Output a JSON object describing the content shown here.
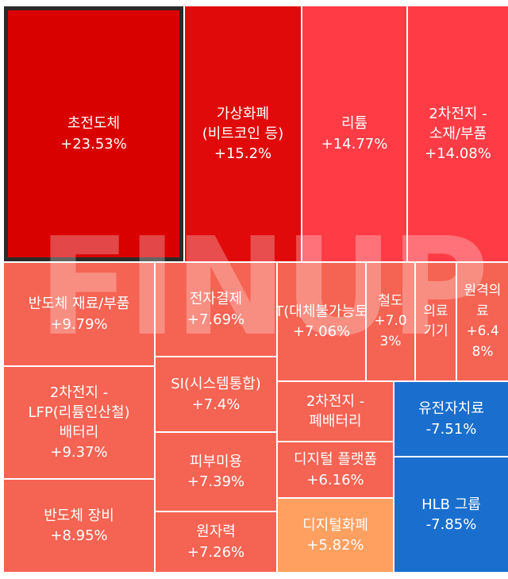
{
  "watermark": "FINUP",
  "chart_data": {
    "type": "treemap",
    "tiles": [
      {
        "name": "초전도체",
        "change": "+23.53%",
        "value": 23.53,
        "color": "#d90000",
        "selected": true
      },
      {
        "name": "가상화폐(비트코인 등)",
        "change": "+15.2%",
        "value": 15.2,
        "color": "#e00a0a"
      },
      {
        "name": "리튬",
        "change": "+14.77%",
        "value": 14.77,
        "color": "#ff3c46"
      },
      {
        "name": "2차전지 - 소재/부품",
        "change": "+14.08%",
        "value": 14.08,
        "color": "#ff3c46"
      },
      {
        "name": "반도체 재료/부품",
        "change": "+9.79%",
        "value": 9.79,
        "color": "#f56353"
      },
      {
        "name": "2차전지 - LFP(리튬인산철) 배터리",
        "change": "+9.37%",
        "value": 9.37,
        "color": "#f56353"
      },
      {
        "name": "반도체 장비",
        "change": "+8.95%",
        "value": 8.95,
        "color": "#f56353"
      },
      {
        "name": "전자결제",
        "change": "+7.69%",
        "value": 7.69,
        "color": "#f56353"
      },
      {
        "name": "SI(시스템통합)",
        "change": "+7.4%",
        "value": 7.4,
        "color": "#f56353"
      },
      {
        "name": "피부미용",
        "change": "+7.39%",
        "value": 7.39,
        "color": "#f56353"
      },
      {
        "name": "원자력",
        "change": "+7.26%",
        "value": 7.26,
        "color": "#f56353"
      },
      {
        "name": "NFT(대체불가능토큰)",
        "change": "+7.06%",
        "value": 7.06,
        "color": "#f56353"
      },
      {
        "name": "철도",
        "change": "+7.03%",
        "value": 7.03,
        "color": "#f56353"
      },
      {
        "name": "의료기기",
        "change": "",
        "value": null,
        "color": "#f56353"
      },
      {
        "name": "원격의료",
        "change": "+6.48%",
        "value": 6.48,
        "color": "#f56353"
      },
      {
        "name": "2차전지 - 폐배터리",
        "change": "",
        "value": null,
        "color": "#f56353"
      },
      {
        "name": "디지털 플랫폼",
        "change": "+6.16%",
        "value": 6.16,
        "color": "#f56353"
      },
      {
        "name": "디지털화폐",
        "change": "+5.82%",
        "value": 5.82,
        "color": "#ffa060"
      },
      {
        "name": "유전자치료",
        "change": "-7.51%",
        "value": -7.51,
        "color": "#1a6fce"
      },
      {
        "name": "HLB 그룹",
        "change": "-7.85%",
        "value": -7.85,
        "color": "#1a6fce"
      }
    ]
  }
}
